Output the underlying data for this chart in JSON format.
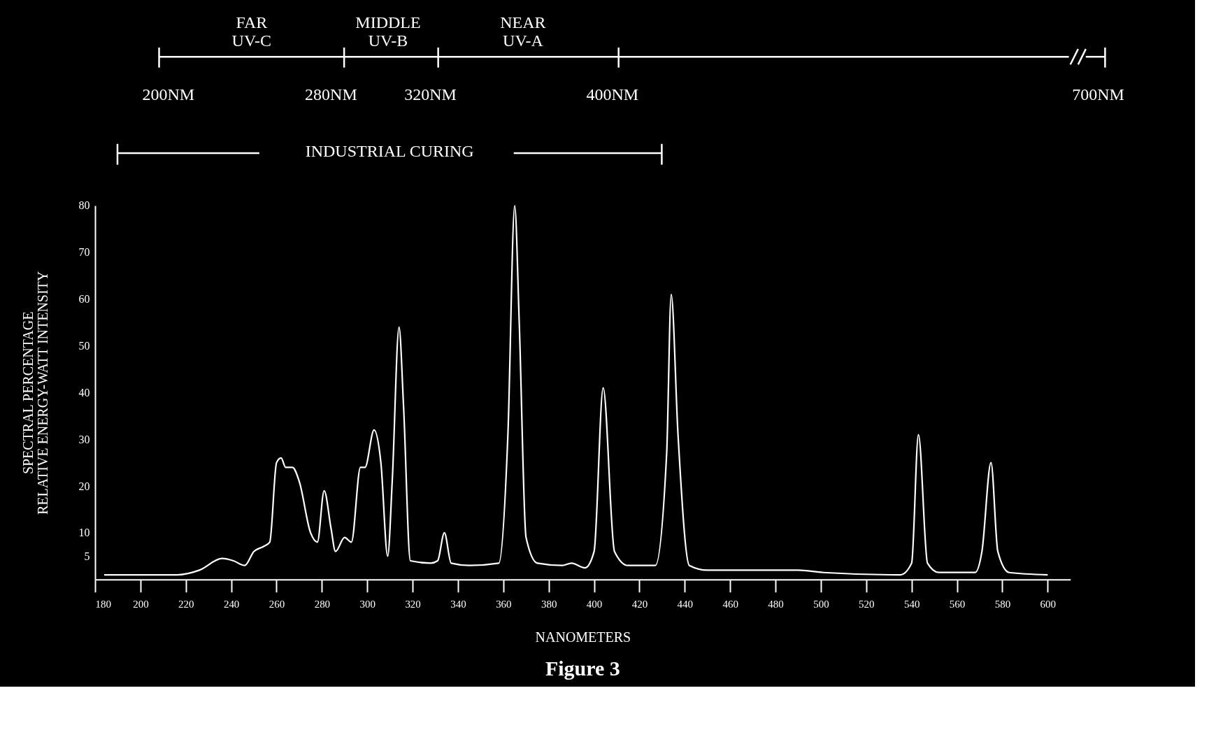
{
  "chart_data": {
    "type": "line",
    "title": "Figure 3",
    "xlabel": "NANOMETERS",
    "ylabel": "SPECTRAL PERCENTAGE\nRELATIVE ENERGY-WATT INTENSITY",
    "annotations": [
      "FAR\nUV-C",
      "MIDDLE\nUV-B",
      "NEAR\nUV-A",
      "200NM",
      "280NM",
      "320NM",
      "400NM",
      "700NM",
      "INDUSTRIAL CURING"
    ],
    "x": [
      184,
      216,
      226,
      236,
      241,
      246,
      250,
      254,
      257,
      260,
      262,
      264,
      267,
      270,
      275,
      278,
      281,
      284,
      286,
      290,
      293,
      297,
      299,
      303,
      306,
      309,
      311,
      314,
      316,
      319,
      328,
      331,
      334,
      337,
      345,
      358,
      362,
      365,
      367,
      370,
      375,
      386,
      390,
      396,
      400,
      404,
      409,
      415,
      427,
      432,
      434,
      437,
      442,
      450,
      471,
      490,
      501,
      535,
      540,
      543,
      547,
      552,
      568,
      571,
      575,
      578,
      583,
      600
    ],
    "series": [
      {
        "color": "#ffffff",
        "values": [
          1,
          1,
          2,
          4.5,
          4,
          3,
          6,
          7,
          8,
          25,
          26,
          24,
          24,
          21,
          10,
          8,
          19,
          11,
          6,
          9,
          8,
          24,
          24,
          32,
          25,
          5,
          21,
          54,
          37,
          4,
          3.5,
          4,
          10,
          3.5,
          3,
          3.5,
          31,
          80,
          55,
          9,
          3.5,
          3,
          3.5,
          2.5,
          6,
          41,
          6,
          3,
          3,
          27,
          61,
          31,
          3,
          2,
          2,
          2,
          1.5,
          1,
          3.5,
          31,
          3.5,
          1.5,
          1.5,
          6,
          25,
          6,
          1.5,
          1
        ]
      }
    ],
    "xlim": [
      180,
      610
    ],
    "xticks": [
      180,
      200,
      220,
      240,
      260,
      280,
      300,
      320,
      340,
      360,
      380,
      400,
      420,
      440,
      460,
      480,
      500,
      520,
      540,
      560,
      580,
      600
    ],
    "ylim": [
      0,
      80
    ],
    "yticks": [
      5,
      10,
      20,
      30,
      40,
      50,
      60,
      70,
      80
    ],
    "grid": false,
    "legend": false,
    "marker": "none",
    "line_style": "solid"
  }
}
